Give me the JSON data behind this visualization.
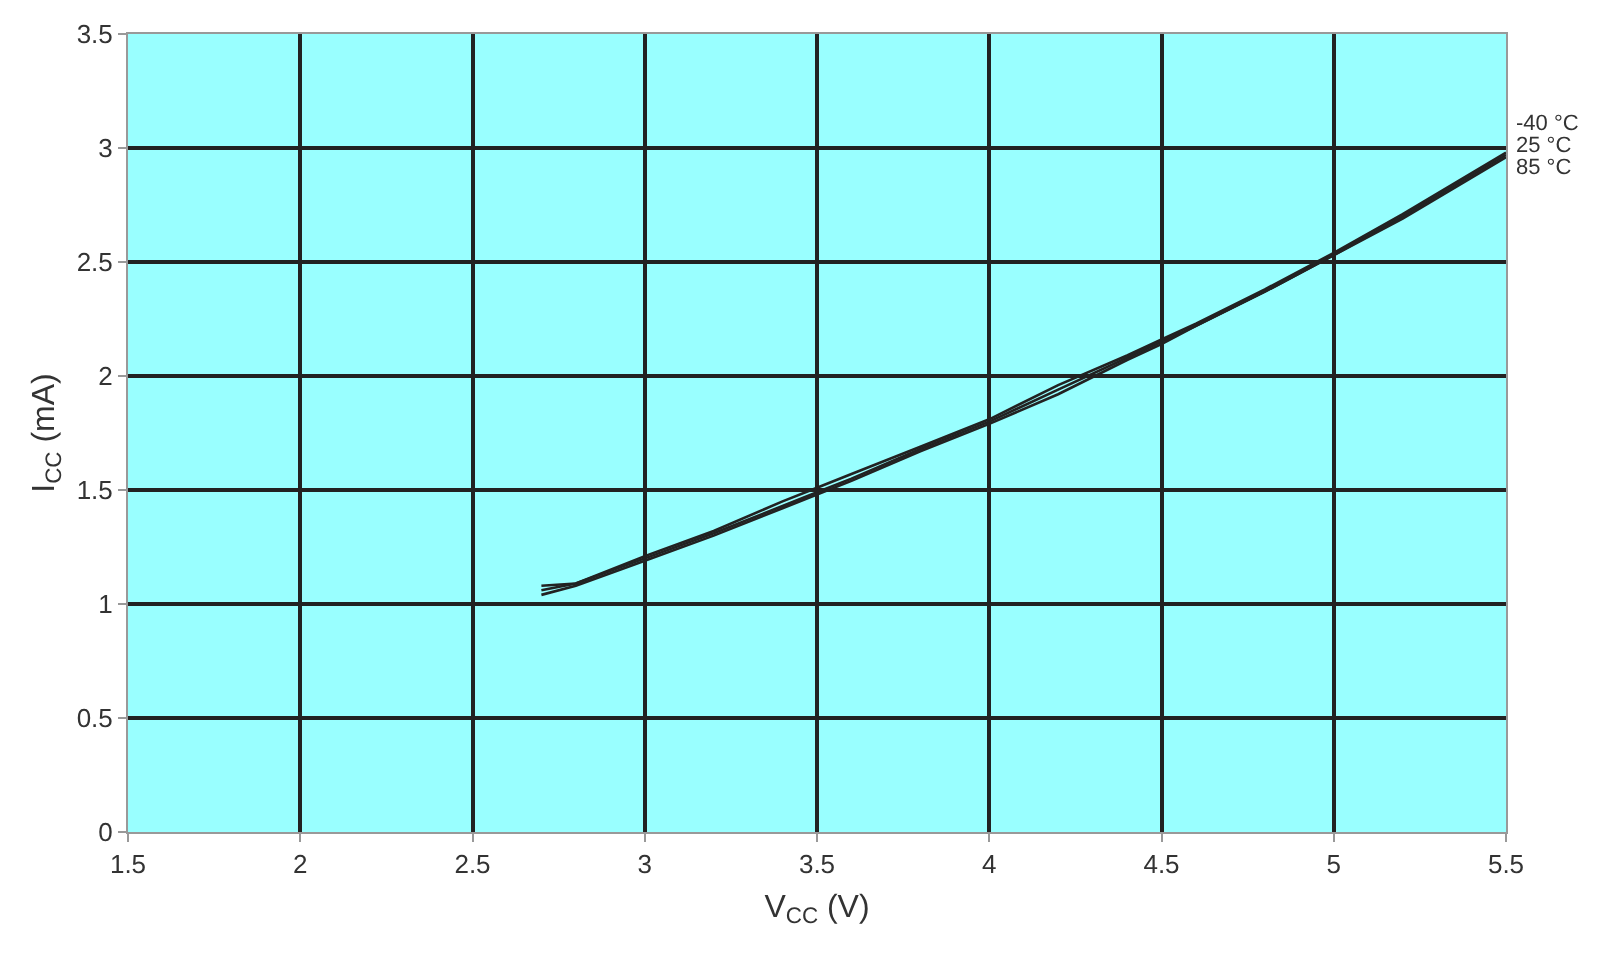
{
  "chart_data": {
    "type": "line",
    "xlabel": "V$_{CC}$ (V)",
    "ylabel": "I$_{CC}$ (mA)",
    "x": [
      2.7,
      2.8,
      3.0,
      3.2,
      3.4,
      3.5,
      3.6,
      3.8,
      4.0,
      4.2,
      4.4,
      4.5,
      4.6,
      4.8,
      5.0,
      5.2,
      5.5
    ],
    "series": [
      {
        "name": "-40 °C",
        "color": "#222222",
        "values": [
          1.08,
          1.09,
          1.21,
          1.32,
          1.45,
          1.51,
          1.57,
          1.69,
          1.81,
          1.96,
          2.09,
          2.16,
          2.23,
          2.38,
          2.54,
          2.71,
          2.98
        ]
      },
      {
        "name": "25 °C",
        "color": "#222222",
        "values": [
          1.06,
          1.09,
          1.2,
          1.31,
          1.43,
          1.49,
          1.55,
          1.68,
          1.8,
          1.94,
          2.08,
          2.15,
          2.22,
          2.37,
          2.53,
          2.7,
          2.97
        ]
      },
      {
        "name": "85 °C",
        "color": "#222222",
        "values": [
          1.04,
          1.08,
          1.19,
          1.3,
          1.42,
          1.48,
          1.54,
          1.67,
          1.79,
          1.92,
          2.07,
          2.14,
          2.22,
          2.37,
          2.53,
          2.69,
          2.96
        ]
      }
    ],
    "xlim": [
      1.5,
      5.5
    ],
    "xticks": [
      1.5,
      2,
      2.5,
      3,
      3.5,
      4,
      4.5,
      5,
      5.5
    ],
    "ylim": [
      0,
      3.5
    ],
    "yticks": [
      0,
      0.5,
      1,
      1.5,
      2,
      2.5,
      3,
      3.5
    ],
    "grid": true,
    "legend": false,
    "marker": "none",
    "line_style": "solid"
  }
}
